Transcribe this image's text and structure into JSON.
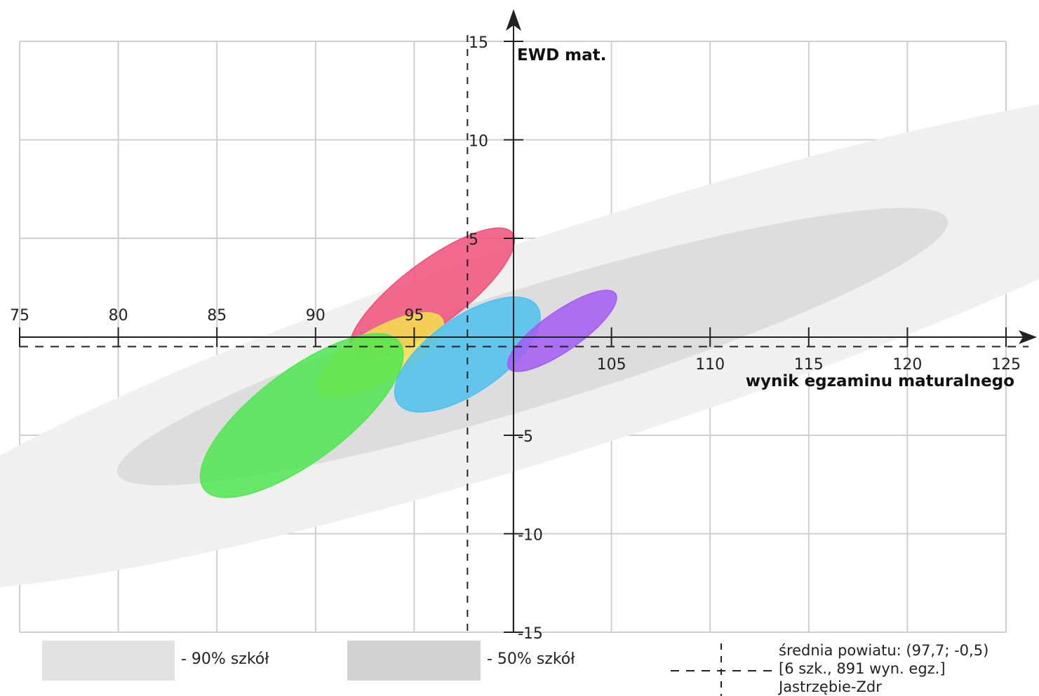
{
  "chart_data": {
    "type": "scatter",
    "title": "",
    "xlabel": "wynik egzaminu maturalnego",
    "ylabel": "EWD mat.",
    "xlim": [
      75,
      125
    ],
    "ylim": [
      -15,
      15
    ],
    "x_ticks": [
      "75",
      "80",
      "85",
      "90",
      "95",
      "105",
      "110",
      "115",
      "120",
      "125"
    ],
    "y_ticks": [
      "15",
      "10",
      "5",
      "-5",
      "-10",
      "-15"
    ],
    "grid": true,
    "reference_region_90": {
      "center": [
        103.5,
        0.0
      ],
      "semi_axis_major": 38.0,
      "semi_axis_minor": 5.5,
      "color": "#f0f0f0"
    },
    "reference_region_50": {
      "center": [
        101.0,
        -0.5
      ],
      "semi_axis_major": 22.0,
      "semi_axis_minor": 3.0,
      "color": "#dddddd"
    },
    "schools": [
      {
        "center": [
          95.9,
          2.2
        ],
        "semi_axis_major": 5.1,
        "semi_axis_minor": 1.6,
        "color": "#f0507a"
      },
      {
        "center": [
          93.3,
          -0.9
        ],
        "semi_axis_major": 3.6,
        "semi_axis_minor": 1.3,
        "color": "#f5e050"
      },
      {
        "center": [
          97.7,
          -0.9
        ],
        "semi_axis_major": 4.3,
        "semi_axis_minor": 1.9,
        "color": "#4dc0ef"
      },
      {
        "center": [
          102.5,
          0.3
        ],
        "semi_axis_major": 3.3,
        "semi_axis_minor": 1.0,
        "color": "#a35cf5"
      },
      {
        "center": [
          89.3,
          -4.0
        ],
        "semi_axis_major": 6.2,
        "semi_axis_minor": 2.3,
        "color": "#50e650"
      }
    ],
    "district_mean": {
      "x": 97.7,
      "y": -0.5
    }
  },
  "legend": {
    "p90_label": "- 90% szkół",
    "p50_label": "- 50% szkół",
    "p90_color": "#e2e2e2",
    "p50_color": "#d2d2d2",
    "mean_line1": "średnia powiatu: (97,7; -0,5)",
    "mean_line2": "[6 szk., 891 wyn. egz.]",
    "mean_line3": "Jastrzębie-Zdr"
  }
}
